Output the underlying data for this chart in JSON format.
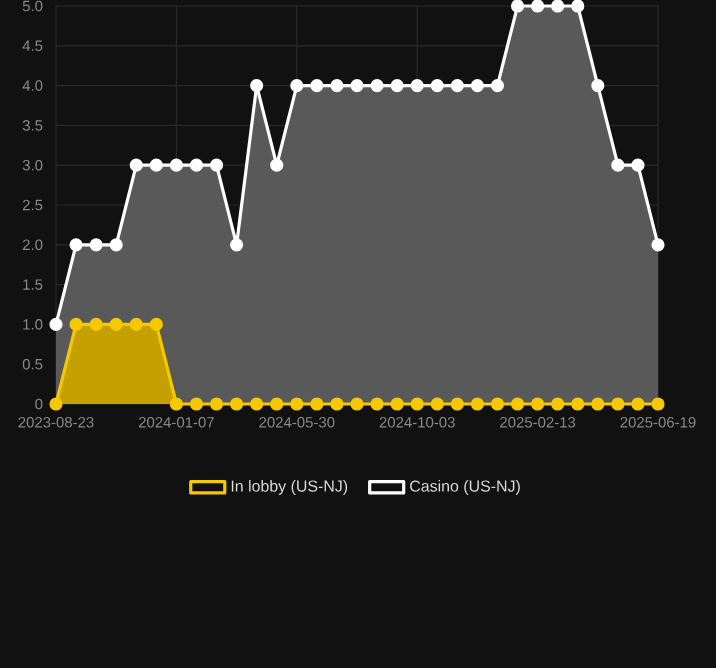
{
  "chart_data": {
    "type": "area",
    "categories": [
      "2023-08-23",
      null,
      null,
      null,
      null,
      null,
      "2024-01-07",
      null,
      null,
      null,
      null,
      null,
      "2024-05-30",
      null,
      null,
      null,
      null,
      null,
      "2024-10-03",
      null,
      null,
      null,
      null,
      null,
      "2025-02-13",
      null,
      null,
      null,
      null,
      null,
      "2025-06-19"
    ],
    "series": [
      {
        "name": "In lobby (US-NJ)",
        "color": "#f5c800",
        "values": [
          0,
          1,
          1,
          1,
          1,
          1,
          0,
          0,
          0,
          0,
          0,
          0,
          0,
          0,
          0,
          0,
          0,
          0,
          0,
          0,
          0,
          0,
          0,
          0,
          0,
          0,
          0,
          0,
          0,
          0,
          0
        ]
      },
      {
        "name": "Casino (US-NJ)",
        "color": "#ffffff",
        "values": [
          1,
          2,
          2,
          2,
          3,
          3,
          3,
          3,
          3,
          2,
          4,
          3,
          4,
          4,
          4,
          4,
          4,
          4,
          4,
          4,
          4,
          4,
          4,
          5,
          5,
          5,
          5,
          4,
          3,
          3,
          2
        ]
      }
    ],
    "ylim": [
      0,
      5
    ],
    "yticks": [
      {
        "value": 0,
        "label": "0"
      },
      {
        "value": 0.5,
        "label": "0.5"
      },
      {
        "value": 1,
        "label": "1.0"
      },
      {
        "value": 1.5,
        "label": "1.5"
      },
      {
        "value": 2,
        "label": "2.0"
      },
      {
        "value": 2.5,
        "label": "2.5"
      },
      {
        "value": 3,
        "label": "3.0"
      },
      {
        "value": 3.5,
        "label": "3.5"
      },
      {
        "value": 4,
        "label": "4.0"
      },
      {
        "value": 4.5,
        "label": "4.5"
      },
      {
        "value": 5,
        "label": "5.0"
      }
    ],
    "grid": true,
    "legend": "bottom",
    "marker": "circle"
  }
}
